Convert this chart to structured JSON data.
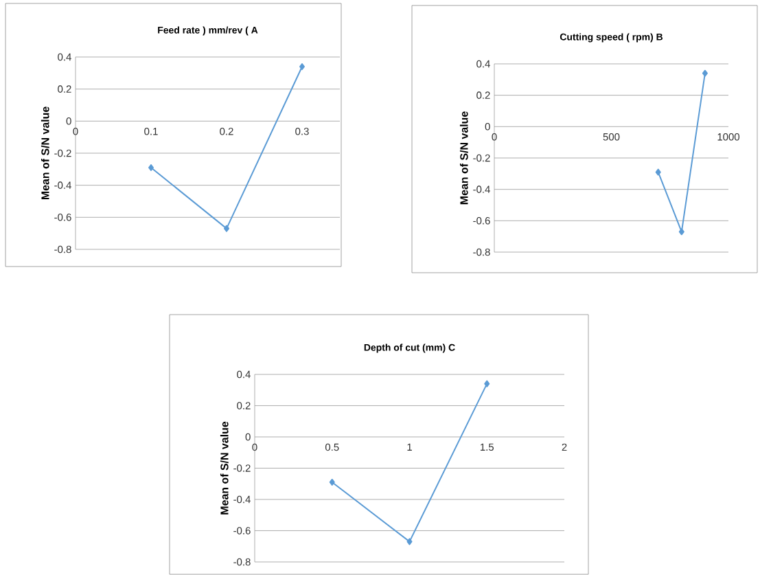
{
  "chart_data": [
    {
      "type": "line",
      "title": "Feed rate ) mm/rev ( A",
      "ylabel": "Mean of S/N value",
      "x": [
        0.1,
        0.2,
        0.3
      ],
      "values": [
        -0.29,
        -0.67,
        0.34
      ],
      "color": "#5b9bd5",
      "marker": "diamond",
      "line_style": "solid",
      "grid": "y",
      "xlim": [
        0,
        0.35
      ],
      "xticks": [
        0,
        0.1,
        0.2,
        0.3
      ],
      "ylim": [
        -0.8,
        0.4
      ],
      "yticks": [
        -0.8,
        -0.6,
        -0.4,
        -0.2,
        0,
        0.2,
        0.4
      ]
    },
    {
      "type": "line",
      "title": "Cutting speed ( rpm)    B",
      "ylabel": "Mean of S/N value",
      "x": [
        700,
        800,
        900
      ],
      "values": [
        -0.29,
        -0.67,
        0.34
      ],
      "color": "#5b9bd5",
      "marker": "diamond",
      "line_style": "solid",
      "grid": "y",
      "xlim": [
        0,
        1000
      ],
      "xticks": [
        0,
        500,
        1000
      ],
      "ylim": [
        -0.8,
        0.4
      ],
      "yticks": [
        -0.8,
        -0.6,
        -0.4,
        -0.2,
        0,
        0.2,
        0.4
      ]
    },
    {
      "type": "line",
      "title": "Depth of cut   (mm) C",
      "ylabel": "Mean of S/N value",
      "x": [
        0.5,
        1,
        1.5
      ],
      "values": [
        -0.29,
        -0.67,
        0.34
      ],
      "color": "#5b9bd5",
      "marker": "diamond",
      "line_style": "solid",
      "grid": "y",
      "xlim": [
        0,
        2
      ],
      "xticks": [
        0,
        0.5,
        1,
        1.5,
        2
      ],
      "ylim": [
        -0.8,
        0.4
      ],
      "yticks": [
        -0.8,
        -0.6,
        -0.4,
        -0.2,
        0,
        0.2,
        0.4
      ]
    }
  ]
}
